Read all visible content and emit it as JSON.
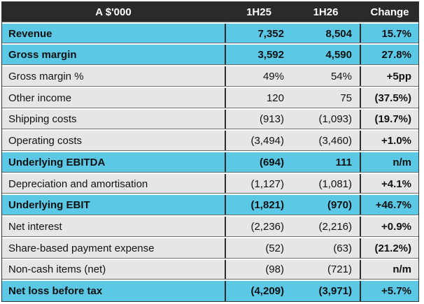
{
  "colors": {
    "header_bg": "#2a2a2c",
    "header_text": "#ffffff",
    "highlight_bg": "#5bc8e6",
    "normal_bg": "#e7e6e6",
    "col_border": "#2c2c2c",
    "outer_border": "#353535",
    "sep_dark": "#6e6e6e"
  },
  "chart_data": {
    "type": "table",
    "columns": [
      "A $'000",
      "1H25",
      "1H26",
      "Change"
    ],
    "rows": [
      {
        "label": "Revenue",
        "h25": "7,352",
        "h26": "8,504",
        "change": "15.7%",
        "style": "highlight"
      },
      {
        "label": "Gross margin",
        "h25": "3,592",
        "h26": "4,590",
        "change": "27.8%",
        "style": "highlight"
      },
      {
        "label": "Gross margin %",
        "h25": "49%",
        "h26": "54%",
        "change": "+5pp",
        "style": "normal"
      },
      {
        "label": "Other income",
        "h25": "120",
        "h26": "75",
        "change": "(37.5%)",
        "style": "normal"
      },
      {
        "label": "Shipping costs",
        "h25": "(913)",
        "h26": "(1,093)",
        "change": "(19.7%)",
        "style": "normal"
      },
      {
        "label": "Operating costs",
        "h25": "(3,494)",
        "h26": "(3,460)",
        "change": "+1.0%",
        "style": "normal"
      },
      {
        "label": "Underlying EBITDA",
        "h25": "(694)",
        "h26": "111",
        "change": "n/m",
        "style": "highlight"
      },
      {
        "label": "Depreciation and amortisation",
        "h25": "(1,127)",
        "h26": "(1,081)",
        "change": "+4.1%",
        "style": "normal"
      },
      {
        "label": "Underlying EBIT",
        "h25": "(1,821)",
        "h26": "(970)",
        "change": "+46.7%",
        "style": "highlight"
      },
      {
        "label": "Net interest",
        "h25": "(2,236)",
        "h26": "(2,216)",
        "change": "+0.9%",
        "style": "normal"
      },
      {
        "label": "Share-based payment expense",
        "h25": "(52)",
        "h26": "(63)",
        "change": "(21.2%)",
        "style": "normal"
      },
      {
        "label": "Non-cash items (net)",
        "h25": "(98)",
        "h26": "(721)",
        "change": "n/m",
        "style": "normal"
      },
      {
        "label": "Net loss before tax",
        "h25": "(4,209)",
        "h26": "(3,971)",
        "change": "+5.7%",
        "style": "highlight"
      }
    ]
  }
}
